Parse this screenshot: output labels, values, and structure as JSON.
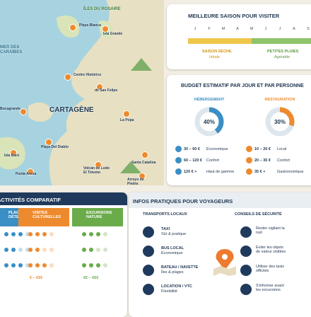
{
  "map": {
    "islands": "ÎLES DU ROSAIRE",
    "sea": "MER DES CARAÏBES",
    "city": "CARTAGÈNE",
    "places": [
      "Playa Blanca",
      "Isla Grande",
      "Centro Histórico",
      "de San Felipe",
      "Bocagrande",
      "La Popa",
      "Isla Barú",
      "Playa Del Diablo",
      "Punta Arena",
      "Volcán de Lodo El Totumo",
      "Santa Catalina",
      "Arroyo de Piedra"
    ]
  },
  "season": {
    "title": "MEILLEURE SAISON POUR VISITER",
    "months": [
      "J",
      "F",
      "M",
      "A",
      "M",
      "J",
      "J",
      "A",
      "S"
    ],
    "dry": {
      "label": "SAISON SÈCHE",
      "note": "Idéale"
    },
    "rain": {
      "label": "PETITES PLUIES",
      "note": "Agréable"
    }
  },
  "budget": {
    "title": "BUDGET ESTIMATIF PAR JOUR ET PAR PERSONNE",
    "groups": [
      {
        "title": "HÉBERGEMENT",
        "percent": 40,
        "percent_label": "40%",
        "rows": [
          [
            "30 – 60 €",
            "Économique"
          ],
          [
            "60 – 120 €",
            "Confort"
          ],
          [
            "120 € +",
            "Haut de gamme"
          ]
        ]
      },
      {
        "title": "RESTAURATION",
        "percent": 30,
        "percent_label": "30%",
        "rows": [
          [
            "10 – 20 €",
            "Local"
          ],
          [
            "20 – 35 €",
            "Confort"
          ],
          [
            "35 € +",
            "Gastronomique"
          ]
        ]
      }
    ]
  },
  "activities": {
    "title": "ACTIVITÉS COMPARATIF",
    "columns": [
      "PLAGES & DÉTENTE",
      "VISITES CULTURELLES",
      "EXCURSIONS NATURE"
    ],
    "prices": [
      "€ – €€€",
      "€€ – €€€"
    ]
  },
  "infos": {
    "title": "INFOS PRATIQUES POUR VOYAGEURS",
    "transport": {
      "title": "TRANSPORTS LOCAUX",
      "items": [
        [
          "TAXI",
          "Sûr & pratique"
        ],
        [
          "BUS LOCAL",
          "Économique"
        ],
        [
          "BATEAU / NAVETTE",
          "Îles & plages"
        ],
        [
          "LOCATION / VTC",
          "Flexibilité"
        ]
      ]
    },
    "safety": {
      "title": "CONSEILS DE SÉCURITÉ",
      "items": [
        "Rester vigilant la nuit",
        "Éviter les objets de valeur visibles",
        "Utiliser des taxis officiels",
        "S'informer avant les excursions"
      ]
    }
  }
}
